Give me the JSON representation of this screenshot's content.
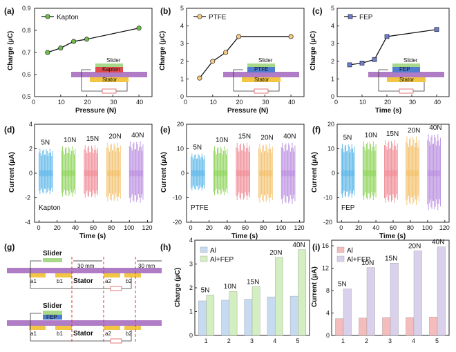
{
  "panels": {
    "a": {
      "label": "(a)"
    },
    "b": {
      "label": "(b)"
    },
    "c": {
      "label": "(c)"
    },
    "d": {
      "label": "(d)"
    },
    "e": {
      "label": "(e)"
    },
    "f": {
      "label": "(f)"
    },
    "g": {
      "label": "(g)"
    },
    "h": {
      "label": "(h)"
    },
    "i": {
      "label": "(i)"
    }
  },
  "inset": {
    "slider": "Slider",
    "stator": "Stator"
  },
  "schematic": {
    "slider": "Slider",
    "stator": "Stator",
    "dist": "30 mm",
    "fep": "FEP",
    "electrodes": [
      "a1",
      "b1",
      "a2",
      "b2"
    ]
  },
  "chart_data": [
    {
      "id": "a",
      "type": "line",
      "title": "",
      "legend": "Kapton",
      "xlabel": "Pressure (N)",
      "ylabel": "Charge (μC)",
      "x": [
        5,
        10,
        15,
        20,
        40
      ],
      "y": [
        0.7,
        0.72,
        0.75,
        0.76,
        0.81
      ],
      "xlim": [
        0,
        45
      ],
      "ylim": [
        0.5,
        0.9
      ],
      "xticks": [
        "0",
        "10",
        "20",
        "30",
        "40"
      ],
      "yticks": [
        "0.5",
        "0.6",
        "0.7",
        "0.8",
        "0.9"
      ],
      "film": "Kapton",
      "color": "#6dbf4a"
    },
    {
      "id": "b",
      "type": "line",
      "title": "",
      "legend": "PTFE",
      "xlabel": "Pressure (N)",
      "ylabel": "Charge (μC)",
      "x": [
        5,
        10,
        15,
        20,
        40
      ],
      "y": [
        1.05,
        2.0,
        2.5,
        3.4,
        3.4
      ],
      "xlim": [
        0,
        45
      ],
      "ylim": [
        0,
        5
      ],
      "xticks": [
        "0",
        "10",
        "20",
        "30",
        "40"
      ],
      "yticks": [
        "0",
        "1",
        "2",
        "3",
        "4",
        "5"
      ],
      "film": "PTFE",
      "color": "#f5cc80"
    },
    {
      "id": "c",
      "type": "line",
      "title": "",
      "legend": "FEP",
      "xlabel": "Time (s)",
      "ylabel": "Charge (μC)",
      "x": [
        5,
        10,
        15,
        20,
        40
      ],
      "y": [
        1.8,
        1.9,
        2.1,
        3.4,
        3.8
      ],
      "xlim": [
        0,
        45
      ],
      "ylim": [
        0,
        5
      ],
      "xticks": [
        "0",
        "10",
        "20",
        "30",
        "40"
      ],
      "yticks": [
        "0",
        "1",
        "2",
        "3",
        "4",
        "5"
      ],
      "film": "FEP",
      "color": "#6f7fd0"
    },
    {
      "id": "d",
      "type": "line",
      "legend": "Kapton",
      "xlabel": "Time (s)",
      "ylabel": "Current (μA)",
      "xlim": [
        -5,
        125
      ],
      "ylim": [
        -4,
        4
      ],
      "xticks": [
        "0",
        "20",
        "40",
        "60",
        "80",
        "100",
        "120"
      ],
      "yticks": [
        "-4",
        "-2",
        "0",
        "2",
        "4"
      ],
      "series": [
        {
          "name": "5N",
          "start": 0,
          "end": 15,
          "max": 2.0,
          "min": -1.7,
          "color": "#5bb6e8"
        },
        {
          "name": "10N",
          "start": 25,
          "end": 40,
          "max": 2.2,
          "min": -1.9,
          "color": "#8ed45a"
        },
        {
          "name": "15N",
          "start": 50,
          "end": 65,
          "max": 2.3,
          "min": -2.0,
          "color": "#f08a95"
        },
        {
          "name": "20N",
          "start": 75,
          "end": 90,
          "max": 2.5,
          "min": -2.3,
          "color": "#f3c06a"
        },
        {
          "name": "40N",
          "start": 100,
          "end": 115,
          "max": 2.6,
          "min": -2.4,
          "color": "#b98ce0"
        }
      ]
    },
    {
      "id": "e",
      "type": "line",
      "legend": "PTFE",
      "xlabel": "Time (s)",
      "ylabel": "Current (μA)",
      "xlim": [
        -5,
        125
      ],
      "ylim": [
        -20,
        20
      ],
      "xticks": [
        "0",
        "20",
        "40",
        "60",
        "80",
        "100",
        "120"
      ],
      "yticks": [
        "-20",
        "-10",
        "0",
        "10",
        "20"
      ],
      "series": [
        {
          "name": "5N",
          "start": 0,
          "end": 15,
          "max": 8,
          "min": -7,
          "color": "#5bb6e8"
        },
        {
          "name": "10N",
          "start": 25,
          "end": 40,
          "max": 11,
          "min": -9,
          "color": "#8ed45a"
        },
        {
          "name": "15N",
          "start": 50,
          "end": 65,
          "max": 12.5,
          "min": -11,
          "color": "#f08a95"
        },
        {
          "name": "20N",
          "start": 75,
          "end": 90,
          "max": 12,
          "min": -12,
          "color": "#f3c06a"
        },
        {
          "name": "40N",
          "start": 100,
          "end": 115,
          "max": 12.5,
          "min": -12.5,
          "color": "#b98ce0"
        }
      ]
    },
    {
      "id": "f",
      "type": "line",
      "legend": "FEP",
      "xlabel": "Time (s)",
      "ylabel": "Current (μA)",
      "xlim": [
        -5,
        125
      ],
      "ylim": [
        -20,
        20
      ],
      "xticks": [
        "0",
        "20",
        "40",
        "60",
        "80",
        "100",
        "120"
      ],
      "yticks": [
        "-20",
        "-10",
        "0",
        "10",
        "20"
      ],
      "series": [
        {
          "name": "5N",
          "start": 0,
          "end": 15,
          "max": 12,
          "min": -10,
          "color": "#5bb6e8"
        },
        {
          "name": "10N",
          "start": 25,
          "end": 40,
          "max": 13,
          "min": -11,
          "color": "#8ed45a"
        },
        {
          "name": "15N",
          "start": 50,
          "end": 65,
          "max": 13.5,
          "min": -12,
          "color": "#f08a95"
        },
        {
          "name": "20N",
          "start": 75,
          "end": 90,
          "max": 15,
          "min": -13,
          "color": "#f3c06a"
        },
        {
          "name": "40N",
          "start": 100,
          "end": 115,
          "max": 16,
          "min": -15,
          "color": "#b98ce0"
        }
      ]
    },
    {
      "id": "h",
      "type": "bar",
      "xlabel": "",
      "ylabel": "Charge (μC)",
      "categories": [
        "1",
        "2",
        "3",
        "4",
        "5"
      ],
      "series": [
        {
          "name": "Al",
          "values": [
            1.45,
            1.48,
            1.52,
            1.62,
            1.65
          ],
          "color": "#c6dbf2"
        },
        {
          "name": "Al+FEP",
          "values": [
            1.7,
            1.85,
            2.05,
            3.28,
            3.6
          ],
          "color": "#d3eec0"
        }
      ],
      "bar_labels": [
        "5N",
        "10N",
        "15N",
        "20N",
        "40N"
      ],
      "ylim": [
        0,
        4
      ],
      "yticks": [
        "0",
        "1",
        "2",
        "3",
        "4"
      ]
    },
    {
      "id": "i",
      "type": "bar",
      "xlabel": "",
      "ylabel": "Current (μA)",
      "categories": [
        "1",
        "2",
        "3",
        "4",
        "5"
      ],
      "series": [
        {
          "name": "Al",
          "values": [
            3.0,
            3.1,
            3.2,
            3.2,
            3.3
          ],
          "color": "#f4bcbc"
        },
        {
          "name": "Al+FEP",
          "values": [
            8.3,
            12.1,
            12.9,
            15.1,
            15.8
          ],
          "color": "#d9d1ec"
        }
      ],
      "bar_labels": [
        "5N",
        "10N",
        "15N",
        "20N",
        "40N"
      ],
      "ylim": [
        0,
        17
      ],
      "yticks": [
        "0",
        "4",
        "8",
        "12",
        "16"
      ]
    }
  ]
}
